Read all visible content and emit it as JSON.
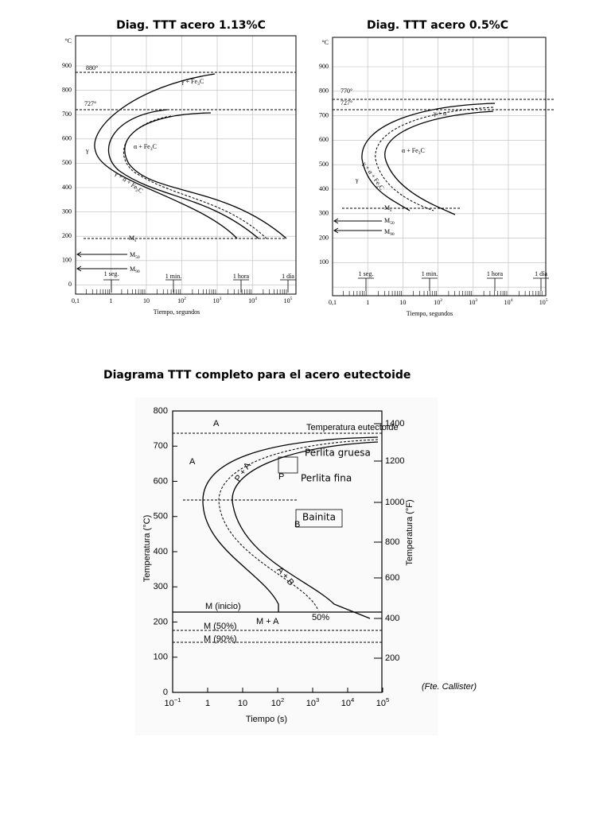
{
  "figures": [
    {
      "title": "Diag. TTT acero 1.13%C",
      "y_unit": "°C",
      "y_labels": [
        "900",
        "800",
        "700",
        "600",
        "500",
        "400",
        "300",
        "200",
        "100",
        "0"
      ],
      "x_labels": [
        "0,1",
        "1",
        "10",
        {
          "base": "10",
          "sup": "2"
        },
        {
          "base": "10",
          "sup": "3"
        },
        {
          "base": "10",
          "sup": "4"
        },
        {
          "base": "10",
          "sup": "5"
        }
      ],
      "x_title": "Tiempo, segundos",
      "labels": [
        "880°",
        "727°",
        {
          "base": "γ + Fe",
          "sub": "3",
          "tail": "C"
        },
        {
          "base": "α + Fe",
          "sub": "3",
          "tail": "C"
        },
        "γ",
        {
          "base": "γ + α + Fe",
          "sub": "3",
          "tail": "C"
        },
        {
          "base": "M",
          "sub": "s"
        },
        {
          "base": "M",
          "sub": "50"
        },
        {
          "base": "M",
          "sub": "90"
        },
        "1 seg.",
        "1 min.",
        "1 hora",
        "1 día"
      ]
    },
    {
      "title": "Diag. TTT acero 0.5%C",
      "y_unit": "°C",
      "y_labels": [
        "900",
        "800",
        "700",
        "600",
        "500",
        "400",
        "300",
        "200",
        "100"
      ],
      "x_labels": [
        "0,1",
        "1",
        "10",
        {
          "base": "10",
          "sup": "2"
        },
        {
          "base": "10",
          "sup": "3"
        },
        {
          "base": "10",
          "sup": "4"
        },
        {
          "base": "10",
          "sup": "5"
        }
      ],
      "x_title": "Tiempo, segundos",
      "labels": [
        "770°",
        "727°",
        "γ + α",
        {
          "base": "α + Fe",
          "sub": "3",
          "tail": "C"
        },
        "γ",
        {
          "base": "γ + α + Fe",
          "sub": "3",
          "tail": "C"
        },
        {
          "base": "M",
          "sub": "s"
        },
        {
          "base": "M",
          "sub": "50"
        },
        {
          "base": "M",
          "sub": "90"
        },
        "1 seg.",
        "1 min.",
        "1 hora",
        "1 día"
      ]
    },
    {
      "title": "Diagrama TTT completo para el acero eutectoide",
      "y_labels": [
        "800",
        "700",
        "600",
        "500",
        "400",
        "300",
        "200",
        "100",
        "0"
      ],
      "y2_labels": [
        "1400",
        "1200",
        "1000",
        "800",
        "600",
        "400",
        "200"
      ],
      "x_labels": [
        {
          "base": "10",
          "sup": "−1"
        },
        "1",
        "10",
        {
          "base": "10",
          "sup": "2"
        },
        {
          "base": "10",
          "sup": "3"
        },
        {
          "base": "10",
          "sup": "4"
        },
        {
          "base": "10",
          "sup": "5"
        }
      ],
      "x_title": "Tiempo (s)",
      "y_title": "Temperatura (°C)",
      "y2_title": "Temperatura (°F)",
      "labels": [
        "A",
        "Temperatura eutectoide",
        "A",
        "Perlita gruesa",
        "Perlita fina",
        "P",
        "Bainita",
        "B",
        "P + A",
        "A + B",
        "M (inicio)",
        "M + A",
        "50%",
        "M (50%)",
        "M (90%)",
        "(Fte. Callister)"
      ]
    }
  ]
}
